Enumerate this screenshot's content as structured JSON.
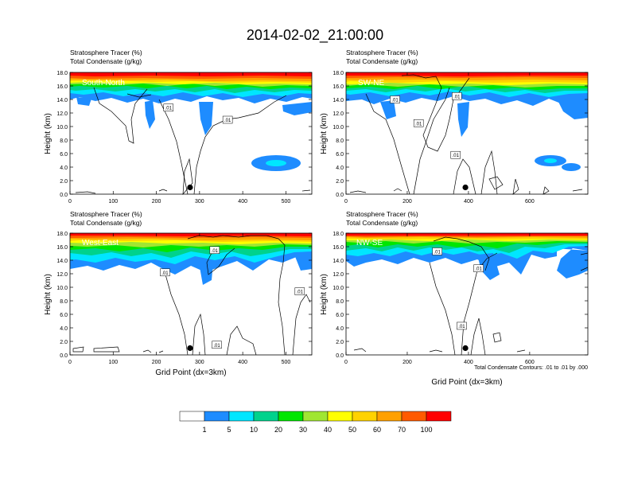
{
  "figure_title": "2014-02-02_21:00:00",
  "var_label_1": "Stratosphere Tracer   (%)",
  "var_label_2": "Total Condensate   (g/kg)",
  "x_axis_label": "Grid Point (dx=3km)",
  "y_axis_label": "Height (km)",
  "contour_note": "Total Condensate Contours: .01 to .01 by .000",
  "contour_label": ".01",
  "colors": {
    "levels": [
      "#ffffff",
      "#1e8cff",
      "#00e6ff",
      "#00d28c",
      "#00e600",
      "#a0e632",
      "#ffff00",
      "#ffd200",
      "#ffa000",
      "#ff5a00",
      "#ff0000"
    ]
  },
  "colorbar_labels": [
    "1",
    "5",
    "10",
    "20",
    "30",
    "40",
    "50",
    "60",
    "70",
    "100"
  ],
  "chart_data": [
    {
      "type": "heatmap",
      "panel_label": "South-North",
      "xlim": [
        0,
        560
      ],
      "ylim": [
        0,
        18
      ],
      "xticks": [
        0,
        100,
        200,
        300,
        400,
        500
      ],
      "yticks": [
        "0.0",
        "2.0",
        "4.0",
        "6.0",
        "8.0",
        "10.0",
        "12.0",
        "14.0",
        "16.0",
        "18.0"
      ],
      "marker": {
        "x": 278,
        "y": 1.0
      },
      "contour_label_positions": [
        [
          228,
          12.8
        ],
        [
          365,
          11.0
        ]
      ]
    },
    {
      "type": "heatmap",
      "panel_label": "SW-NE",
      "xlim": [
        0,
        790
      ],
      "ylim": [
        0,
        18
      ],
      "xticks": [
        0,
        200,
        400,
        600
      ],
      "yticks": [
        "0.0",
        "2.0",
        "4.0",
        "6.0",
        "8.0",
        "10.0",
        "12.0",
        "14.0",
        "16.0",
        "18.0"
      ],
      "marker": {
        "x": 390,
        "y": 1.0
      },
      "contour_label_positions": [
        [
          160,
          14.0
        ],
        [
          237,
          10.5
        ],
        [
          362,
          14.5
        ],
        [
          358,
          5.8
        ]
      ]
    },
    {
      "type": "heatmap",
      "panel_label": "West-East",
      "xlim": [
        0,
        560
      ],
      "ylim": [
        0,
        18
      ],
      "xticks": [
        0,
        100,
        200,
        300,
        400,
        500
      ],
      "yticks": [
        "0.0",
        "2.0",
        "4.0",
        "6.0",
        "8.0",
        "10.0",
        "12.0",
        "14.0",
        "16.0",
        "18.0"
      ],
      "marker": {
        "x": 278,
        "y": 1.0
      },
      "contour_label_positions": [
        [
          335,
          15.5
        ],
        [
          220,
          12.2
        ],
        [
          532,
          9.4
        ],
        [
          340,
          1.5
        ]
      ]
    },
    {
      "type": "heatmap",
      "panel_label": "NW-SE",
      "xlim": [
        0,
        790
      ],
      "ylim": [
        0,
        18
      ],
      "xticks": [
        0,
        200,
        400,
        600
      ],
      "yticks": [
        "0.0",
        "2.0",
        "4.0",
        "6.0",
        "8.0",
        "10.0",
        "12.0",
        "14.0",
        "16.0",
        "18.0"
      ],
      "marker": {
        "x": 390,
        "y": 1.0
      },
      "contour_label_positions": [
        [
          298,
          15.3
        ],
        [
          433,
          12.8
        ],
        [
          378,
          4.3
        ]
      ]
    }
  ]
}
